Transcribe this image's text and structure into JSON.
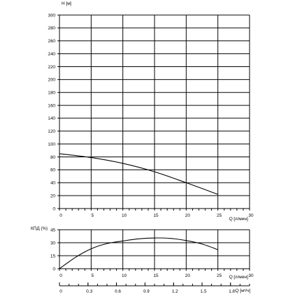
{
  "chart_data": [
    {
      "type": "line",
      "ylabel": "H [м]",
      "xlabel": "Q [л/мин]",
      "xlim": [
        0,
        30
      ],
      "ylim": [
        0,
        300
      ],
      "xticks": [
        "0",
        "5",
        "10",
        "15",
        "20",
        "25",
        "30"
      ],
      "yticks": [
        "0",
        "20",
        "40",
        "60",
        "80",
        "100",
        "120",
        "140",
        "160",
        "180",
        "200",
        "220",
        "240",
        "260",
        "280",
        "300"
      ],
      "grid": true,
      "series": [
        {
          "x": [
            0,
            5,
            10,
            15,
            20,
            25
          ],
          "y": [
            85,
            79,
            70,
            57,
            40,
            22
          ]
        }
      ]
    },
    {
      "type": "line",
      "ylabel": "КПД (%)",
      "xlabel": "Q [л/мин]",
      "xlim": [
        0,
        30
      ],
      "ylim": [
        0,
        45
      ],
      "xticks": [
        "0",
        "5",
        "10",
        "15",
        "20",
        "25",
        "30"
      ],
      "yticks": [
        "0",
        "15",
        "30",
        "45"
      ],
      "grid": true,
      "series": [
        {
          "x": [
            0,
            2.5,
            5,
            7.5,
            10,
            12.5,
            15,
            17.5,
            20,
            22.5,
            25
          ],
          "y": [
            0,
            13,
            23,
            29,
            32,
            34.5,
            35.5,
            35,
            32.5,
            28.5,
            22
          ]
        }
      ]
    },
    {
      "type": "axis",
      "xlabel": "Q [м³/ч]",
      "xticks": [
        "0",
        "0.3",
        "0.6",
        "0.9",
        "1.2",
        "1.5",
        "1.8"
      ]
    }
  ]
}
